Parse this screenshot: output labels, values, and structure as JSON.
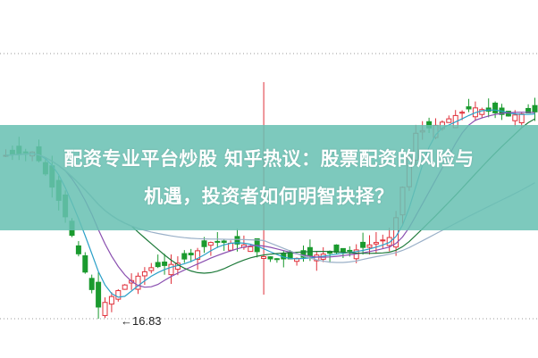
{
  "title": {
    "line1": "配资专业平台炒股 知乎热议：股票配资的风险与",
    "line2": "机遇，投资者如何明智抉择？"
  },
  "chart": {
    "low_marker_label": "16.83",
    "colors": {
      "up": "#e0303a",
      "down": "#1a9a2e",
      "banner": "#68c0b2"
    }
  }
}
